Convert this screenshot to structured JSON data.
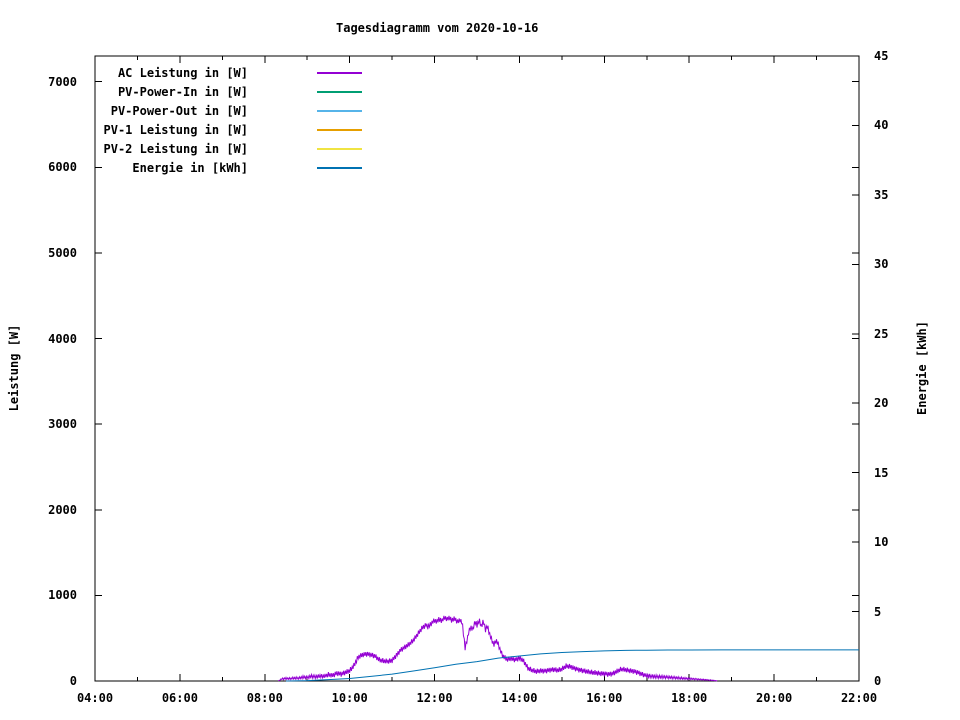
{
  "title": "Tagesdiagramm vom 2020-10-16",
  "chart_data": {
    "type": "line",
    "title": "Tagesdiagramm vom 2020-10-16",
    "grid": false,
    "legend_position": "top-left-inside",
    "x_axis": {
      "unit": "time_of_day",
      "range_hours": [
        4,
        22
      ],
      "major_tick_step_hours": 2,
      "minor_tick_step_hours": 1,
      "tick_labels": [
        "04:00",
        "06:00",
        "08:00",
        "10:00",
        "12:00",
        "14:00",
        "16:00",
        "18:00",
        "20:00",
        "22:00"
      ]
    },
    "y_left_axis": {
      "label": "Leistung [W]",
      "range": [
        0,
        7300
      ],
      "tick_step": 1000,
      "tick_labels": [
        "0",
        "1000",
        "2000",
        "3000",
        "4000",
        "5000",
        "6000",
        "7000"
      ]
    },
    "y_right_axis": {
      "label": "Energie [kWh]",
      "range": [
        0,
        45
      ],
      "tick_step": 5,
      "tick_labels": [
        "0",
        "5",
        "10",
        "15",
        "20",
        "25",
        "30",
        "35",
        "40",
        "45"
      ]
    },
    "series": [
      {
        "name": "AC Leistung in [W]",
        "color": "#9400d3",
        "axis": "left",
        "visible": true,
        "style": "noisy",
        "points": [
          [
            8.32,
            0
          ],
          [
            8.4,
            25
          ],
          [
            8.5,
            30
          ],
          [
            8.6,
            28
          ],
          [
            8.7,
            35
          ],
          [
            8.8,
            33
          ],
          [
            8.9,
            45
          ],
          [
            9.0,
            40
          ],
          [
            9.1,
            55
          ],
          [
            9.2,
            48
          ],
          [
            9.3,
            60
          ],
          [
            9.4,
            55
          ],
          [
            9.5,
            75
          ],
          [
            9.6,
            65
          ],
          [
            9.7,
            90
          ],
          [
            9.8,
            80
          ],
          [
            9.9,
            100
          ],
          [
            10.0,
            120
          ],
          [
            10.1,
            180
          ],
          [
            10.2,
            280
          ],
          [
            10.3,
            305
          ],
          [
            10.4,
            315
          ],
          [
            10.5,
            305
          ],
          [
            10.6,
            290
          ],
          [
            10.7,
            248
          ],
          [
            10.8,
            235
          ],
          [
            10.9,
            230
          ],
          [
            11.0,
            240
          ],
          [
            11.1,
            300
          ],
          [
            11.2,
            360
          ],
          [
            11.3,
            395
          ],
          [
            11.4,
            430
          ],
          [
            11.5,
            475
          ],
          [
            11.6,
            545
          ],
          [
            11.7,
            615
          ],
          [
            11.8,
            655
          ],
          [
            11.85,
            628
          ],
          [
            11.9,
            660
          ],
          [
            12.0,
            710
          ],
          [
            12.05,
            688
          ],
          [
            12.1,
            728
          ],
          [
            12.15,
            700
          ],
          [
            12.2,
            724
          ],
          [
            12.25,
            744
          ],
          [
            12.3,
            718
          ],
          [
            12.35,
            748
          ],
          [
            12.4,
            702
          ],
          [
            12.45,
            730
          ],
          [
            12.5,
            712
          ],
          [
            12.55,
            688
          ],
          [
            12.6,
            714
          ],
          [
            12.65,
            678
          ],
          [
            12.68,
            560
          ],
          [
            12.72,
            380
          ],
          [
            12.76,
            470
          ],
          [
            12.8,
            560
          ],
          [
            12.85,
            638
          ],
          [
            12.9,
            598
          ],
          [
            12.95,
            700
          ],
          [
            13.0,
            648
          ],
          [
            13.05,
            714
          ],
          [
            13.1,
            638
          ],
          [
            13.15,
            698
          ],
          [
            13.2,
            600
          ],
          [
            13.25,
            640
          ],
          [
            13.3,
            540
          ],
          [
            13.35,
            478
          ],
          [
            13.4,
            420
          ],
          [
            13.45,
            478
          ],
          [
            13.5,
            430
          ],
          [
            13.55,
            358
          ],
          [
            13.6,
            300
          ],
          [
            13.7,
            252
          ],
          [
            13.8,
            262
          ],
          [
            13.9,
            246
          ],
          [
            14.0,
            268
          ],
          [
            14.05,
            254
          ],
          [
            14.1,
            232
          ],
          [
            14.2,
            150
          ],
          [
            14.3,
            126
          ],
          [
            14.4,
            112
          ],
          [
            14.5,
            120
          ],
          [
            14.6,
            116
          ],
          [
            14.7,
            126
          ],
          [
            14.8,
            134
          ],
          [
            14.9,
            126
          ],
          [
            15.0,
            140
          ],
          [
            15.1,
            175
          ],
          [
            15.2,
            168
          ],
          [
            15.3,
            146
          ],
          [
            15.4,
            130
          ],
          [
            15.5,
            120
          ],
          [
            15.6,
            110
          ],
          [
            15.7,
            102
          ],
          [
            15.8,
            96
          ],
          [
            15.9,
            88
          ],
          [
            16.0,
            84
          ],
          [
            16.1,
            78
          ],
          [
            16.2,
            86
          ],
          [
            16.3,
            114
          ],
          [
            16.4,
            140
          ],
          [
            16.5,
            132
          ],
          [
            16.6,
            120
          ],
          [
            16.7,
            112
          ],
          [
            16.8,
            96
          ],
          [
            16.9,
            76
          ],
          [
            17.0,
            62
          ],
          [
            17.2,
            52
          ],
          [
            17.4,
            46
          ],
          [
            17.6,
            40
          ],
          [
            17.8,
            34
          ],
          [
            18.0,
            27
          ],
          [
            18.2,
            20
          ],
          [
            18.4,
            14
          ],
          [
            18.55,
            8
          ],
          [
            18.67,
            3
          ]
        ]
      },
      {
        "name": "PV-Power-In in [W]",
        "color": "#009e73",
        "axis": "left",
        "visible": false,
        "style": "plain",
        "points": []
      },
      {
        "name": "PV-Power-Out in [W]",
        "color": "#56b4e9",
        "axis": "left",
        "visible": false,
        "style": "plain",
        "points": []
      },
      {
        "name": "PV-1 Leistung in [W]",
        "color": "#e69f00",
        "axis": "left",
        "visible": false,
        "style": "plain",
        "points": []
      },
      {
        "name": "PV-2 Leistung in [W]",
        "color": "#f0e442",
        "axis": "left",
        "visible": false,
        "style": "plain",
        "points": []
      },
      {
        "name": "Energie in [kWh]",
        "color": "#0072b2",
        "axis": "right",
        "visible": true,
        "style": "plain",
        "points": [
          [
            8.5,
            0
          ],
          [
            9.0,
            0.03
          ],
          [
            9.5,
            0.1
          ],
          [
            10.0,
            0.18
          ],
          [
            10.5,
            0.33
          ],
          [
            11.0,
            0.5
          ],
          [
            11.5,
            0.72
          ],
          [
            12.0,
            0.95
          ],
          [
            12.5,
            1.2
          ],
          [
            13.0,
            1.4
          ],
          [
            13.5,
            1.65
          ],
          [
            14.0,
            1.8
          ],
          [
            14.5,
            1.95
          ],
          [
            15.0,
            2.05
          ],
          [
            15.5,
            2.12
          ],
          [
            16.0,
            2.17
          ],
          [
            16.5,
            2.2
          ],
          [
            17.0,
            2.22
          ],
          [
            17.5,
            2.23
          ],
          [
            18.0,
            2.235
          ],
          [
            18.75,
            2.24
          ],
          [
            22.0,
            2.24
          ]
        ]
      }
    ]
  }
}
